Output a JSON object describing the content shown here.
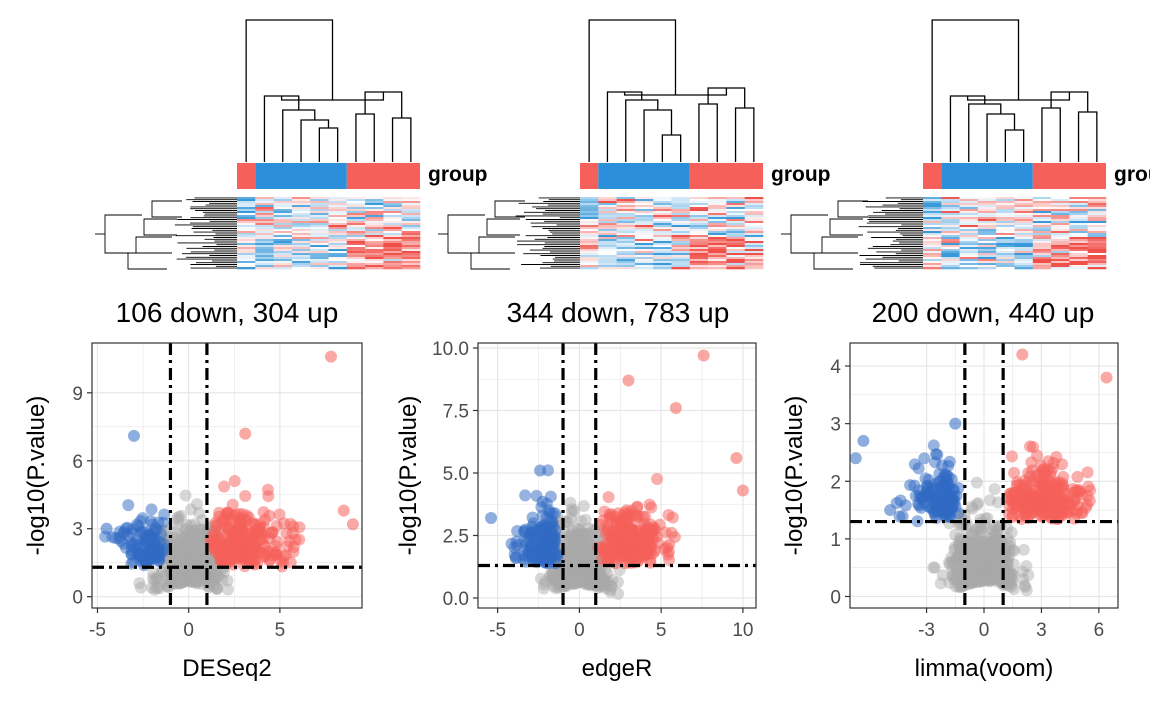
{
  "heatmap_legend_label": "group",
  "group_colors": [
    "#f5605a",
    "#2b90d9"
  ],
  "heatmap_colors": {
    "low": "#3a9ad9",
    "mid": "#ffffff",
    "high": "#f0504a"
  },
  "colors": {
    "up": "#f5605a",
    "down": "#2f69c4",
    "ns": "#a8a8a8",
    "grid": "#e6e6e6"
  },
  "chart_data": [
    {
      "type": "scatter",
      "title": "106 down, 304 up",
      "xlabel": "DESeq2",
      "ylabel": "-log10(P.value)",
      "xlim": [
        -5.3,
        9.5
      ],
      "ylim": [
        -0.5,
        11.2
      ],
      "xticks": [
        -5,
        0,
        5
      ],
      "yticks": [
        0,
        3,
        6,
        9
      ],
      "x_thresholds": [
        -1,
        1
      ],
      "y_threshold": 1.3,
      "down_count": 106,
      "up_count": 304,
      "highlight_points": [
        {
          "x": 7.8,
          "y": 10.6,
          "group": "up"
        },
        {
          "x": 3.1,
          "y": 7.2,
          "group": "up"
        },
        {
          "x": -3.0,
          "y": 7.1,
          "group": "down"
        },
        {
          "x": -4.5,
          "y": 3.0,
          "group": "down"
        },
        {
          "x": -3.8,
          "y": 2.6,
          "group": "down"
        },
        {
          "x": 8.5,
          "y": 3.8,
          "group": "up"
        },
        {
          "x": 9.0,
          "y": 3.2,
          "group": "up"
        }
      ]
    },
    {
      "type": "scatter",
      "title": "344 down, 783 up",
      "xlabel": "edgeR",
      "ylabel": "-log10(P.value)",
      "xlim": [
        -6.2,
        10.8
      ],
      "ylim": [
        -0.4,
        10.2
      ],
      "xticks": [
        -5,
        0,
        5,
        10
      ],
      "yticks": [
        0.0,
        2.5,
        5.0,
        7.5,
        10.0
      ],
      "ytick_labels": [
        "0.0",
        "2.5",
        "5.0",
        "7.5",
        "10.0"
      ],
      "x_thresholds": [
        -1,
        1
      ],
      "y_threshold": 1.3,
      "down_count": 344,
      "up_count": 783,
      "highlight_points": [
        {
          "x": 7.6,
          "y": 9.7,
          "group": "up"
        },
        {
          "x": 3.0,
          "y": 8.7,
          "group": "up"
        },
        {
          "x": 5.9,
          "y": 7.6,
          "group": "up"
        },
        {
          "x": 9.6,
          "y": 5.6,
          "group": "up"
        },
        {
          "x": 10.0,
          "y": 4.3,
          "group": "up"
        },
        {
          "x": -2.4,
          "y": 5.1,
          "group": "down"
        },
        {
          "x": -5.4,
          "y": 3.2,
          "group": "down"
        }
      ]
    },
    {
      "type": "scatter",
      "title": "200 down, 440 up",
      "xlabel": "limma(voom)",
      "ylabel": "-log10(P.value)",
      "xlim": [
        -7.0,
        7.0
      ],
      "ylim": [
        -0.2,
        4.4
      ],
      "xticks": [
        -3,
        0,
        3,
        6
      ],
      "yticks": [
        0,
        1,
        2,
        3,
        4
      ],
      "x_thresholds": [
        -1,
        1
      ],
      "y_threshold": 1.3,
      "down_count": 200,
      "up_count": 440,
      "highlight_points": [
        {
          "x": 2.0,
          "y": 4.2,
          "group": "up"
        },
        {
          "x": 6.4,
          "y": 3.8,
          "group": "up"
        },
        {
          "x": 4.7,
          "y": 1.8,
          "group": "up"
        },
        {
          "x": -6.3,
          "y": 2.7,
          "group": "down"
        },
        {
          "x": -6.7,
          "y": 2.4,
          "group": "down"
        },
        {
          "x": -1.5,
          "y": 3.0,
          "group": "down"
        },
        {
          "x": -4.9,
          "y": 1.5,
          "group": "down"
        }
      ]
    }
  ]
}
